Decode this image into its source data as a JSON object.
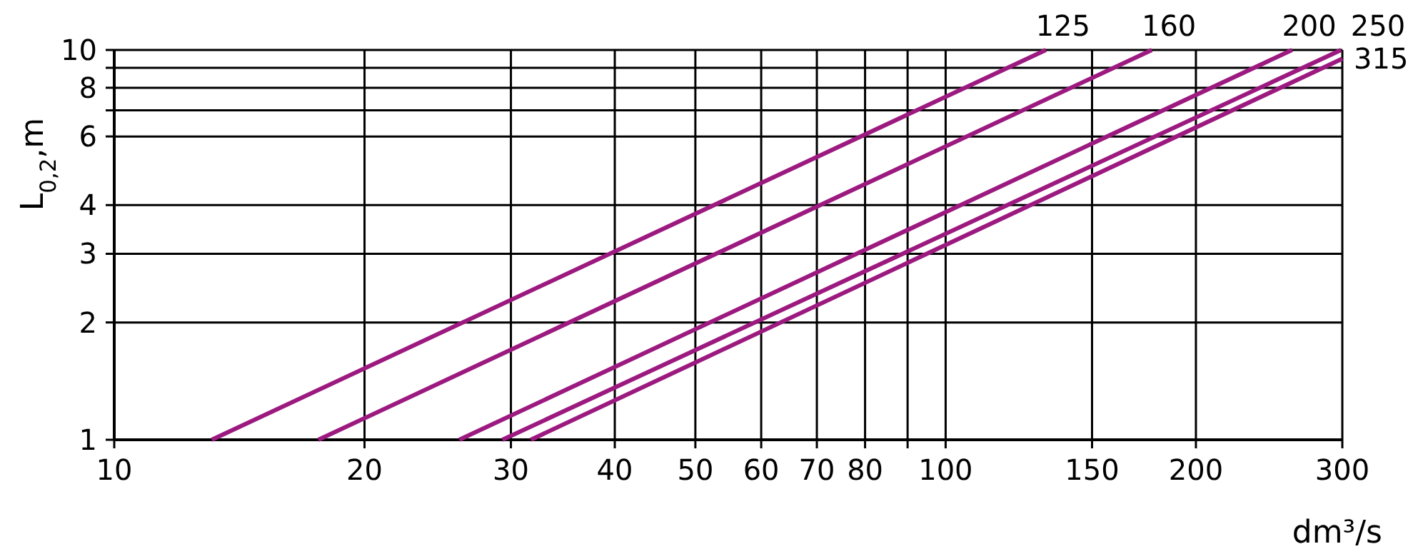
{
  "chart_data": {
    "type": "line",
    "xlabel": "dm³/s",
    "ylabel": "L$_{0,2}$,m",
    "log": "xy",
    "grid": true,
    "marker": "none",
    "line_style": "solid",
    "xlim": [
      10,
      300
    ],
    "xticks": [
      10,
      20,
      30,
      40,
      50,
      60,
      70,
      80,
      {
        "value": 90,
        "label": null
      },
      100,
      150,
      200,
      300
    ],
    "ylim": [
      1,
      10
    ],
    "yticks": [
      1,
      2,
      3,
      4,
      6,
      {
        "value": 7,
        "label": null
      },
      8,
      {
        "value": 9,
        "label": null
      },
      10
    ],
    "series": [
      {
        "name": "125",
        "color": "#9c1a80",
        "x": [
          13.1,
          132
        ],
        "values": [
          1,
          10
        ]
      },
      {
        "name": "160",
        "color": "#9c1a80",
        "x": [
          17.6,
          177
        ],
        "values": [
          1,
          10
        ]
      },
      {
        "name": "200",
        "color": "#9c1a80",
        "x": [
          26,
          261
        ],
        "values": [
          1,
          10
        ]
      },
      {
        "name": "250",
        "color": "#9c1a80",
        "x": [
          29.3,
          299
        ],
        "values": [
          1,
          10
        ]
      },
      {
        "name": "315",
        "color": "#9c1a80",
        "x": [
          31.7,
          300
        ],
        "values": [
          1,
          9.5
        ]
      }
    ]
  }
}
